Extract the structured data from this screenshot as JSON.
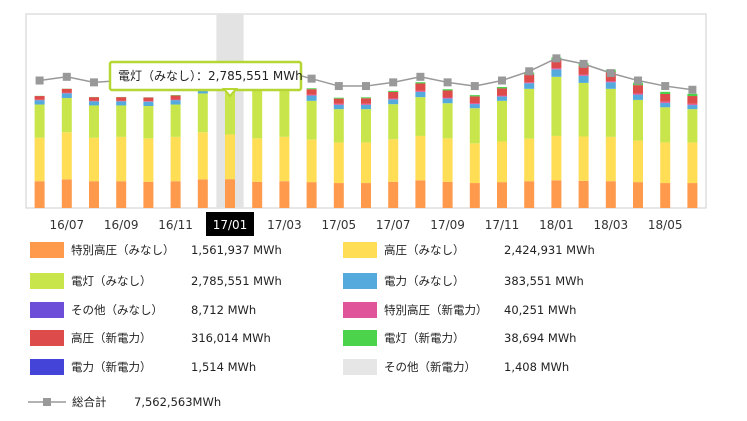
{
  "chart_data": {
    "type": "bar",
    "stacked": true,
    "categories": [
      "16/06",
      "16/07",
      "16/08",
      "16/09",
      "16/10",
      "16/11",
      "16/12",
      "17/01",
      "17/02",
      "17/03",
      "17/04",
      "17/05",
      "17/06",
      "17/07",
      "17/08",
      "17/09",
      "17/10",
      "17/11",
      "17/12",
      "18/01",
      "18/02",
      "18/03",
      "18/04",
      "18/05",
      "18/06"
    ],
    "x_tick_labels": [
      "16/07",
      "16/09",
      "16/11",
      "17/01",
      "17/03",
      "17/05",
      "17/07",
      "17/09",
      "17/11",
      "18/01",
      "18/03",
      "18/05"
    ],
    "highlighted_category": "17/01",
    "series": [
      {
        "name": "特別高圧（みなし）",
        "color": "#ff9a4d",
        "values": [
          1.45,
          1.55,
          1.45,
          1.45,
          1.42,
          1.45,
          1.55,
          1.56,
          1.42,
          1.45,
          1.4,
          1.35,
          1.35,
          1.42,
          1.5,
          1.42,
          1.35,
          1.4,
          1.45,
          1.5,
          1.47,
          1.45,
          1.4,
          1.35,
          1.35
        ]
      },
      {
        "name": "高圧（みなし）",
        "color": "#ffdd55",
        "values": [
          2.35,
          2.55,
          2.35,
          2.4,
          2.35,
          2.4,
          2.55,
          2.42,
          2.35,
          2.4,
          2.3,
          2.2,
          2.2,
          2.3,
          2.4,
          2.35,
          2.15,
          2.2,
          2.3,
          2.4,
          2.4,
          2.4,
          2.25,
          2.2,
          2.2
        ]
      },
      {
        "name": "電灯（みなし）",
        "color": "#c8e64c",
        "values": [
          1.8,
          1.85,
          1.75,
          1.7,
          1.75,
          1.75,
          2.1,
          2.79,
          2.7,
          2.6,
          2.1,
          1.8,
          1.8,
          1.9,
          2.1,
          1.9,
          1.9,
          2.2,
          2.7,
          3.2,
          2.9,
          2.6,
          2.2,
          1.9,
          1.8
        ]
      },
      {
        "name": "電力（みなし）",
        "color": "#55aadd",
        "values": [
          0.23,
          0.25,
          0.22,
          0.22,
          0.23,
          0.23,
          0.28,
          0.38,
          0.35,
          0.32,
          0.28,
          0.23,
          0.23,
          0.25,
          0.28,
          0.25,
          0.22,
          0.23,
          0.3,
          0.4,
          0.38,
          0.35,
          0.28,
          0.23,
          0.22
        ]
      },
      {
        "name": "その他（みなし）",
        "color": "#6c4ed8",
        "values": [
          0.01,
          0.01,
          0.01,
          0.01,
          0.01,
          0.01,
          0.01,
          0.01,
          0.01,
          0.01,
          0.01,
          0.01,
          0.01,
          0.01,
          0.01,
          0.01,
          0.01,
          0.01,
          0.01,
          0.01,
          0.01,
          0.01,
          0.01,
          0.01,
          0.01
        ]
      },
      {
        "name": "特別高圧（新電力）",
        "color": "#e05599",
        "values": [
          0.02,
          0.02,
          0.02,
          0.02,
          0.02,
          0.03,
          0.03,
          0.04,
          0.04,
          0.04,
          0.04,
          0.05,
          0.05,
          0.05,
          0.05,
          0.05,
          0.05,
          0.05,
          0.05,
          0.06,
          0.06,
          0.06,
          0.06,
          0.06,
          0.06
        ]
      },
      {
        "name": "高圧（新電力）",
        "color": "#dd4b4b",
        "values": [
          0.2,
          0.22,
          0.2,
          0.2,
          0.2,
          0.22,
          0.27,
          0.32,
          0.3,
          0.3,
          0.3,
          0.28,
          0.3,
          0.35,
          0.4,
          0.38,
          0.36,
          0.38,
          0.42,
          0.45,
          0.48,
          0.48,
          0.45,
          0.42,
          0.42
        ]
      },
      {
        "name": "電灯（新電力）",
        "color": "#4cd34c",
        "values": [
          0.01,
          0.01,
          0.01,
          0.01,
          0.01,
          0.02,
          0.03,
          0.04,
          0.05,
          0.05,
          0.05,
          0.05,
          0.05,
          0.06,
          0.07,
          0.07,
          0.07,
          0.08,
          0.1,
          0.13,
          0.14,
          0.14,
          0.13,
          0.12,
          0.12
        ]
      },
      {
        "name": "電力（新電力）",
        "color": "#4444d8",
        "values": [
          0.0,
          0.0,
          0.0,
          0.0,
          0.0,
          0.0,
          0.0,
          0.0,
          0.0,
          0.0,
          0.0,
          0.0,
          0.0,
          0.0,
          0.0,
          0.0,
          0.0,
          0.0,
          0.0,
          0.0,
          0.0,
          0.0,
          0.0,
          0.0,
          0.0
        ]
      },
      {
        "name": "その他（新電力）",
        "color": "#e6e6e6",
        "values": [
          0.0,
          0.0,
          0.0,
          0.0,
          0.0,
          0.0,
          0.0,
          0.0,
          0.0,
          0.0,
          0.0,
          0.0,
          0.0,
          0.0,
          0.0,
          0.0,
          0.0,
          0.0,
          0.0,
          0.0,
          0.0,
          0.0,
          0.0,
          0.0,
          0.0
        ]
      }
    ],
    "line_series": {
      "name": "総合計",
      "color": "#999999",
      "values": [
        6.9,
        7.1,
        6.8,
        6.9,
        6.7,
        6.9,
        7.4,
        7.56,
        7.3,
        7.4,
        7.0,
        6.6,
        6.6,
        6.8,
        7.1,
        6.8,
        6.6,
        6.9,
        7.4,
        8.1,
        7.8,
        7.3,
        6.9,
        6.6,
        6.4
      ]
    },
    "ylim": [
      0,
      10.5
    ],
    "grid": false,
    "tooltip": {
      "label": "電灯（みなし）",
      "value": "2,785,551 MWh"
    }
  },
  "legend": [
    {
      "name": "特別高圧（みなし）",
      "value": "1,561,937 MWh",
      "color": "#ff9a4d"
    },
    {
      "name": "高圧（みなし）",
      "value": "2,424,931 MWh",
      "color": "#ffdd55"
    },
    {
      "name": "電灯（みなし）",
      "value": "2,785,551 MWh",
      "color": "#c8e64c"
    },
    {
      "name": "電力（みなし）",
      "value": "383,551 MWh",
      "color": "#55aadd"
    },
    {
      "name": "その他（みなし）",
      "value": "8,712 MWh",
      "color": "#6c4ed8"
    },
    {
      "name": "特別高圧（新電力）",
      "value": "40,251 MWh",
      "color": "#e05599"
    },
    {
      "name": "高圧（新電力）",
      "value": "316,014 MWh",
      "color": "#dd4b4b"
    },
    {
      "name": "電灯（新電力）",
      "value": "38,694 MWh",
      "color": "#4cd34c"
    },
    {
      "name": "電力（新電力）",
      "value": "1,514 MWh",
      "color": "#4444d8"
    },
    {
      "name": "その他（新電力）",
      "value": "1,408 MWh",
      "color": "#e6e6e6"
    }
  ],
  "total": {
    "name": "総合計",
    "value": "7,562,563MWh"
  }
}
